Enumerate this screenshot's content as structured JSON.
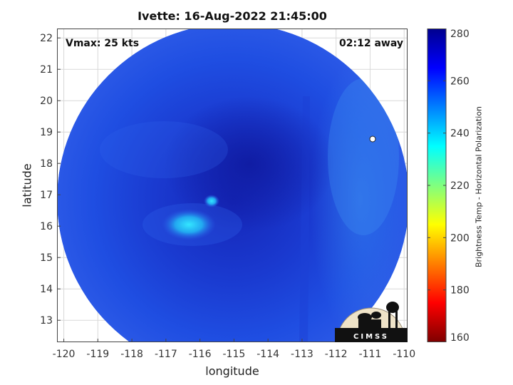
{
  "title": "Ivette: 16-Aug-2022 21:45:00",
  "overlay": {
    "vmax_label": "Vmax: 25 kts",
    "time_away_label": "02:12 away"
  },
  "chart_data": {
    "type": "heatmap",
    "title": "Ivette: 16-Aug-2022 21:45:00",
    "xlabel": "longitude",
    "ylabel": "latitude",
    "xlim": [
      -120.2,
      -109.9
    ],
    "ylim": [
      12.3,
      22.3
    ],
    "xticks": [
      -120,
      -119,
      -118,
      -117,
      -116,
      -115,
      -114,
      -113,
      -112,
      -111,
      -110
    ],
    "yticks": [
      13,
      14,
      15,
      16,
      17,
      18,
      19,
      20,
      21,
      22
    ],
    "grid": true,
    "swath_center": {
      "lon": -115.05,
      "lat": 17.6
    },
    "features": [
      {
        "kind": "warm-core",
        "lon": -115.2,
        "lat": 17.8,
        "tb": 270
      },
      {
        "kind": "convective-spot",
        "lon": -116.4,
        "lat": 16.1,
        "tb": 240
      },
      {
        "kind": "convective-spot",
        "lon": -116.0,
        "lat": 16.8,
        "tb": 240
      }
    ],
    "colorbar": {
      "label": "Brightness Temp - Horizontal Polarization",
      "range": [
        160,
        280
      ],
      "ticks": [
        160,
        180,
        200,
        220,
        240,
        260,
        280
      ],
      "colors": [
        "#7f0000",
        "#ff0000",
        "#ffff00",
        "#00ffff",
        "#0000ff",
        "#00008f"
      ]
    }
  },
  "logo": {
    "text": "CIMSS"
  }
}
